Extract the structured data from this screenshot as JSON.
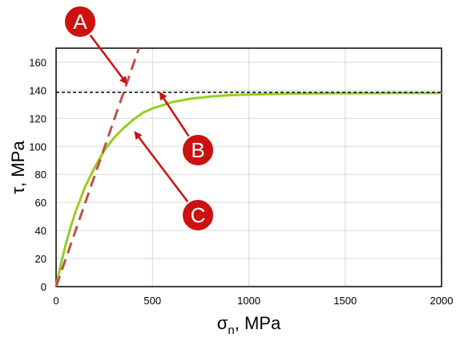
{
  "chart_data": {
    "type": "line",
    "title": "",
    "xlabel": {
      "main": "σ",
      "sub": "n",
      "rest": ", MPa"
    },
    "ylabel": "τ, MPa",
    "xlim": [
      0,
      2000
    ],
    "ylim": [
      0,
      170
    ],
    "x_ticks": [
      0,
      500,
      1000,
      1500,
      2000
    ],
    "y_ticks": [
      0,
      20,
      40,
      60,
      80,
      100,
      120,
      140,
      160
    ],
    "x_tick_labels": [
      "0",
      "500",
      "1000",
      "1500",
      "2000"
    ],
    "y_tick_labels": [
      "0",
      "20",
      "40",
      "60",
      "80",
      "100",
      "120",
      "140",
      "160"
    ],
    "grid": true,
    "legend": "none",
    "series": [
      {
        "style": "solid",
        "color": "#99cc22",
        "x": [
          0,
          25,
          50,
          75,
          100,
          150,
          200,
          250,
          300,
          350,
          400,
          450,
          500,
          600,
          700,
          800,
          900,
          1000,
          1200,
          1400,
          1600,
          1800,
          2000
        ],
        "y": [
          0,
          16,
          30,
          42,
          53,
          71,
          85,
          97,
          106,
          113,
          119,
          124,
          127,
          131.5,
          134,
          135.5,
          136.5,
          137,
          137.5,
          137.8,
          137.9,
          138,
          138
        ]
      },
      {
        "style": "dashed",
        "color": "#c0504d",
        "x": [
          0,
          430
        ],
        "y": [
          0,
          170
        ]
      },
      {
        "style": "dotted",
        "color": "#000000",
        "x": [
          0,
          2000
        ],
        "y": [
          138.5,
          138.5
        ]
      }
    ],
    "annotations": [
      {
        "label": "A",
        "color": "#cc1111",
        "target": [
          365,
          145
        ]
      },
      {
        "label": "B",
        "color": "#cc1111",
        "target": [
          540,
          138
        ]
      },
      {
        "label": "C",
        "color": "#cc1111",
        "target": [
          410,
          110
        ]
      }
    ]
  }
}
